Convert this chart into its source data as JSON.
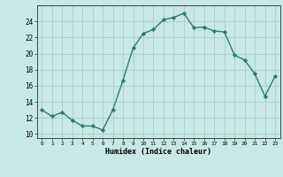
{
  "x": [
    0,
    1,
    2,
    3,
    4,
    5,
    6,
    7,
    8,
    9,
    10,
    11,
    12,
    13,
    14,
    15,
    16,
    17,
    18,
    19,
    20,
    21,
    22,
    23
  ],
  "y": [
    13,
    12.2,
    12.7,
    11.7,
    11,
    11,
    10.5,
    13,
    16.7,
    20.7,
    22.5,
    23,
    24.2,
    24.5,
    25,
    23.2,
    23.3,
    22.8,
    22.7,
    19.8,
    19.2,
    17.5,
    14.7,
    17.2
  ],
  "line_color": "#2d7d6e",
  "bg_color": "#c8e8e5",
  "grid_color": "#a8ccc9",
  "ylabel_ticks": [
    10,
    12,
    14,
    16,
    18,
    20,
    22,
    24
  ],
  "ylim": [
    9.5,
    26
  ],
  "xlim": [
    -0.5,
    23.5
  ],
  "xlabel": "Humidex (Indice chaleur)",
  "marker": "D",
  "marker_size": 2.2,
  "line_width": 1.0
}
